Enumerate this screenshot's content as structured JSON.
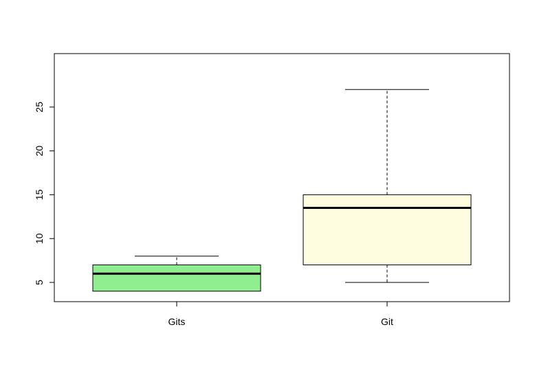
{
  "chart_data": {
    "type": "boxplot",
    "title": "",
    "xlabel": "",
    "ylabel": "",
    "ylim": [
      3,
      28
    ],
    "y_ticks": [
      5,
      10,
      15,
      20,
      25
    ],
    "y_tick_labels": [
      "5",
      "10",
      "15",
      "20",
      "25"
    ],
    "grid": false,
    "categories": [
      "Gits",
      "Git"
    ],
    "boxes": [
      {
        "label": "Gits",
        "whisker_low": 4,
        "q1": 4,
        "median": 6,
        "q3": 7,
        "whisker_high": 8,
        "fill": "#90ee90"
      },
      {
        "label": "Git",
        "whisker_low": 5,
        "q1": 7,
        "median": 13.5,
        "q3": 15,
        "whisker_high": 27,
        "fill": "#fffde0"
      }
    ]
  }
}
